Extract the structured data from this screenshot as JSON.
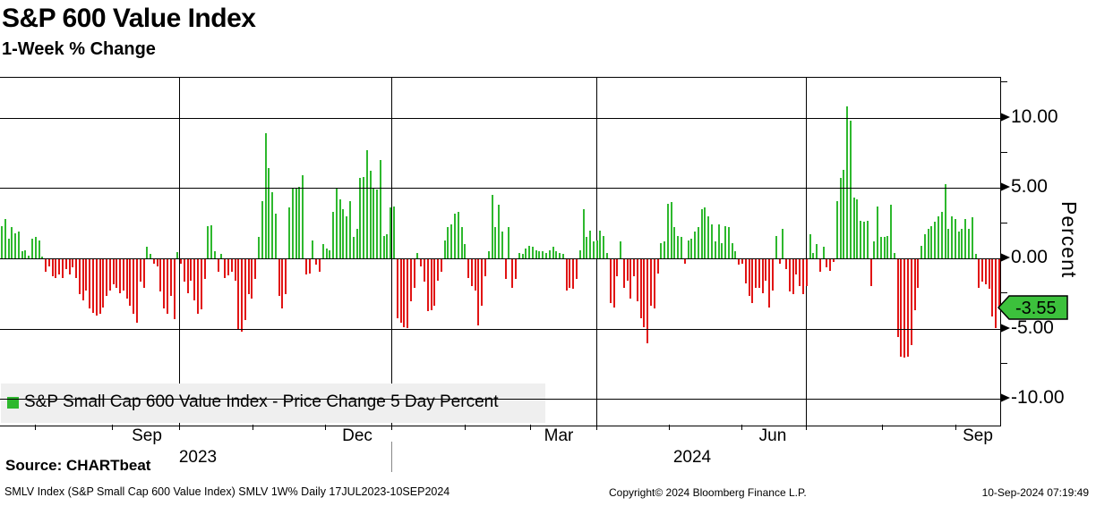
{
  "header": {
    "title": "S&P 600 Value Index",
    "subtitle": "1-Week % Change"
  },
  "legend": {
    "label": "S&P Small Cap 600 Value Index - Price Change 5 Day Percent"
  },
  "chart_data": {
    "type": "bar",
    "title": "S&P 600 Value Index 1-Week % Change",
    "series_name": "S&P Small Cap 600 Value Index - Price Change 5 Day Percent",
    "ylabel": "Percent",
    "ylim": [
      -11.88,
      12.84
    ],
    "grid": true,
    "colors": {
      "positive": "#2eb82e",
      "negative": "#e11414",
      "tag": "#3cc13c"
    },
    "last_value": -3.55,
    "last_value_label": "-3.55",
    "y_axis": {
      "label": "Percent",
      "major_ticks": [
        {
          "value": 10,
          "text": "10.00"
        },
        {
          "value": 5,
          "text": "5.00"
        },
        {
          "value": 0,
          "text": "0.00"
        },
        {
          "value": -5,
          "text": "-5.00"
        },
        {
          "value": -10,
          "text": "-10.00"
        }
      ],
      "minor_tick_values": [
        12.5,
        7.5,
        2.5,
        -2.5,
        -7.5
      ]
    },
    "x_axis": {
      "month_ticks_x": [
        39,
        125,
        200,
        282,
        363,
        437,
        519,
        592,
        666,
        747,
        828,
        900,
        985,
        1067
      ],
      "quarter_gridlines_x": [
        200,
        437,
        666,
        900
      ],
      "month_labels": [
        {
          "text": "Sep",
          "x": 164
        },
        {
          "text": "Dec",
          "x": 399
        },
        {
          "text": "Mar",
          "x": 624
        },
        {
          "text": "Jun",
          "x": 863
        },
        {
          "text": "Sep",
          "x": 1092
        }
      ],
      "year_labels": [
        {
          "text": "2023",
          "x": 221
        },
        {
          "text": "2024",
          "x": 773
        }
      ],
      "year_divider_x": 437,
      "range_note": "17JUL2023-10SEP2024"
    },
    "values": [
      2.3,
      2.8,
      1.4,
      2.2,
      1.8,
      1.9,
      0.5,
      0.6,
      0.2,
      1.4,
      1.5,
      1.3,
      0.1,
      -0.9,
      -0.5,
      -1.2,
      -1.3,
      -1.1,
      -1.3,
      -0.7,
      -1.1,
      -0.6,
      -1.3,
      -2.5,
      -2.9,
      -2.2,
      -3.5,
      -3.8,
      -4.0,
      -3.9,
      -3.4,
      -2.6,
      -2.2,
      -1.8,
      -2.0,
      -2.4,
      -2.2,
      -2.8,
      -3.3,
      -3.9,
      -4.5,
      -1.6,
      -2.0,
      0.85,
      0.35,
      -0.3,
      -0.5,
      -2.3,
      -3.5,
      -3.9,
      -2.6,
      -4.25,
      0.45,
      -0.3,
      -1.6,
      -2.4,
      -1.5,
      -2.9,
      -3.9,
      -3.55,
      -1.4,
      2.3,
      2.35,
      0.5,
      -0.9,
      0.3,
      -1.3,
      -1.15,
      -0.9,
      -1.5,
      -5.0,
      -5.15,
      -4.3,
      -2.5,
      -2.8,
      -1.4,
      1.5,
      4.1,
      8.9,
      6.4,
      4.7,
      3.2,
      -2.6,
      -3.5,
      -2.5,
      3.6,
      5.0,
      5.0,
      5.1,
      5.9,
      -1.1,
      -1.0,
      1.3,
      -0.4,
      -0.9,
      1.0,
      0.7,
      0.6,
      3.3,
      5.0,
      4.2,
      3.5,
      3.0,
      4.1,
      1.5,
      2.1,
      5.7,
      5.8,
      7.7,
      6.2,
      5.0,
      4.9,
      7.0,
      1.6,
      1.7,
      3.6,
      3.7,
      -4.2,
      -4.5,
      -4.8,
      -4.9,
      -3.0,
      -2.0,
      0.4,
      -0.5,
      -1.6,
      -3.7,
      -3.6,
      -3.3,
      -1.5,
      -0.9,
      1.3,
      2.2,
      2.4,
      3.2,
      3.3,
      2.2,
      1.0,
      -1.3,
      -1.9,
      -2.2,
      -4.7,
      -3.3,
      -1.2,
      0.5,
      4.5,
      2.2,
      3.8,
      1.9,
      -1.4,
      2.2,
      -2.0,
      -1.4,
      0.4,
      0.3,
      0.7,
      0.9,
      0.8,
      0.6,
      0.5,
      0.5,
      0.4,
      0.6,
      0.8,
      0.5,
      0.4,
      0.3,
      -2.2,
      -2.0,
      -2.1,
      -1.4,
      0.6,
      3.5,
      1.5,
      2.0,
      1.2,
      1.3,
      2.0,
      1.6,
      0.4,
      -3.1,
      -3.4,
      -1.2,
      1.2,
      -2.0,
      -1.5,
      -2.8,
      -1.2,
      -3.0,
      -4.2,
      -4.8,
      -6.0,
      -3.3,
      -3.5,
      -1.0,
      1.1,
      1.2,
      3.9,
      4.0,
      2.2,
      1.6,
      1.5,
      -0.3,
      1.3,
      1.4,
      1.9,
      2.2,
      3.5,
      3.6,
      3.0,
      2.4,
      1.2,
      2.4,
      1.1,
      2.3,
      2.2,
      1.1,
      0.5,
      -0.4,
      -0.3,
      -1.7,
      -2.6,
      -3.1,
      -2.0,
      -2.0,
      -2.4,
      -1.5,
      -3.4,
      -2.2,
      1.6,
      -0.3,
      2.1,
      -0.7,
      -2.3,
      -2.5,
      -1.1,
      -1.9,
      -2.5,
      -1.9,
      1.7,
      0.4,
      1.0,
      -0.9,
      0.8,
      -0.6,
      -0.8,
      -0.2,
      4.1,
      5.7,
      6.3,
      10.8,
      9.8,
      4.3,
      4.2,
      2.7,
      2.6,
      2.7,
      -1.9,
      1.2,
      3.7,
      1.5,
      1.5,
      1.6,
      3.8,
      0.4,
      -5.5,
      -6.9,
      -7.0,
      -6.9,
      -6.1,
      -3.6,
      -2.0,
      0.9,
      1.7,
      2.1,
      2.3,
      2.6,
      3.0,
      3.3,
      5.3,
      2.1,
      3.0,
      2.8,
      1.9,
      2.1,
      2.8,
      2.1,
      2.9,
      0.3,
      -2.0,
      -1.6,
      -1.75,
      -2.1,
      -4.05,
      -4.9,
      -3.55
    ]
  },
  "footer": {
    "source_label": "Source: CHARTbeat",
    "meta": "SMLV Index (S&P Small Cap 600 Value Index) SMLV 1W%  Daily 17JUL2023-10SEP2024",
    "copyright": "Copyright© 2024 Bloomberg Finance L.P.",
    "timestamp": "10-Sep-2024 07:19:49"
  }
}
